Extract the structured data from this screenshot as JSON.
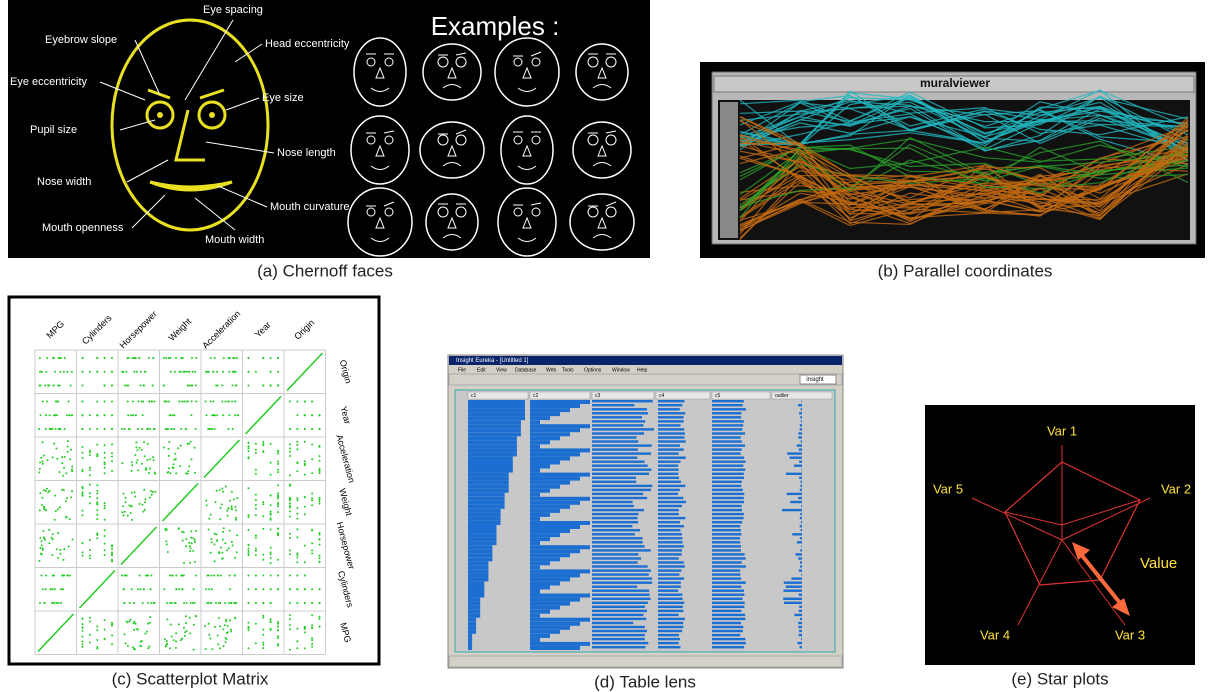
{
  "panels": {
    "chernoff": {
      "caption": "(a) Chernoff faces",
      "examples_title": "Examples :",
      "labels": [
        "Eyebrow slope",
        "Eye spacing",
        "Head eccentricity",
        "Eye eccentricity",
        "Eye size",
        "Pupil size",
        "Nose length",
        "Nose width",
        "Mouth curvature",
        "Mouth openness",
        "Mouth width"
      ]
    },
    "parallel": {
      "caption": "(b) Parallel coordinates",
      "window_title": "muralviewer"
    },
    "scatter": {
      "caption": "(c) Scatterplot Matrix",
      "columns": [
        "MPG",
        "Cylinders",
        "Horsepower",
        "Weight",
        "Acceleration",
        "Year",
        "Origin"
      ],
      "rows": [
        "Origin",
        "Year",
        "Acceleration",
        "Weight",
        "Horsepower",
        "Cylinders",
        "MPG"
      ]
    },
    "table_lens": {
      "caption": "(d) Table lens",
      "window_title": "Insight Eureka - [Untitled 1]",
      "menu": [
        "File",
        "Edit",
        "View",
        "Database",
        "Web",
        "Tools",
        "Options",
        "Window",
        "Help"
      ],
      "brand": "insight",
      "columns": [
        "c1",
        "c2",
        "c3",
        "c4",
        "c5",
        "outlier"
      ]
    },
    "star": {
      "caption": "(e) Star plots",
      "axes": [
        "Var 1",
        "Var 2",
        "Var 3",
        "Var 4",
        "Var 5"
      ],
      "value_label": "Value"
    }
  }
}
